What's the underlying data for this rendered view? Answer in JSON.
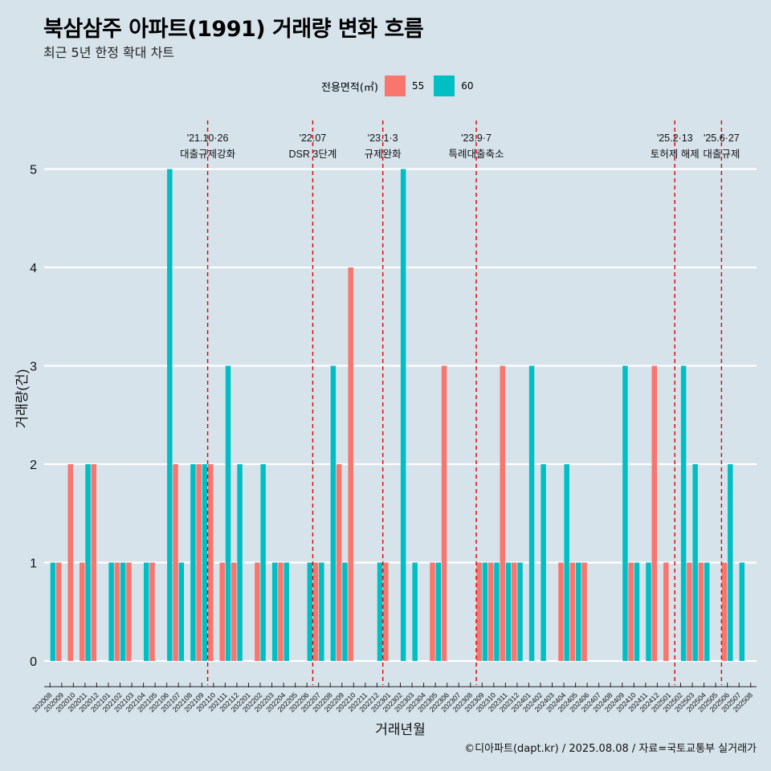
{
  "header": {
    "title": "북삼삼주 아파트(1991) 거래량 변화 흐름",
    "subtitle": "최근 5년 한정 확대 차트"
  },
  "legend": {
    "title": "전용면적(㎡)",
    "items": [
      {
        "label": "55",
        "color": "#f8766d"
      },
      {
        "label": "60",
        "color": "#00bfc4"
      }
    ]
  },
  "caption": "©디아파트(dapt.kr) / 2025.08.08 / 자료=국토교통부 실거래가",
  "chart_data": {
    "type": "bar",
    "title": "북삼삼주 아파트(1991) 거래량 변화 흐름",
    "xlabel": "거래년월",
    "ylabel": "거래량(건)",
    "ylim": [
      -0.2,
      5.6
    ],
    "yticks": [
      0,
      1,
      2,
      3,
      4,
      5
    ],
    "grid": true,
    "legend_position": "top",
    "categories": [
      "202008",
      "202009",
      "202010",
      "202011",
      "202012",
      "202101",
      "202102",
      "202103",
      "202104",
      "202105",
      "202106",
      "202107",
      "202108",
      "202109",
      "202110",
      "202111",
      "202112",
      "202201",
      "202202",
      "202203",
      "202204",
      "202205",
      "202206",
      "202207",
      "202208",
      "202209",
      "202210",
      "202211",
      "202212",
      "202301",
      "202302",
      "202303",
      "202304",
      "202305",
      "202306",
      "202307",
      "202308",
      "202309",
      "202310",
      "202311",
      "202312",
      "202401",
      "202402",
      "202403",
      "202404",
      "202405",
      "202406",
      "202407",
      "202408",
      "202409",
      "202410",
      "202411",
      "202412",
      "202501",
      "202502",
      "202503",
      "202504",
      "202505",
      "202506",
      "202507",
      "202508"
    ],
    "series": [
      {
        "name": "55",
        "color": "#f8766d",
        "values": [
          0,
          1,
          2,
          1,
          2,
          0,
          1,
          1,
          0,
          1,
          0,
          2,
          0,
          2,
          2,
          1,
          1,
          0,
          1,
          0,
          1,
          0,
          0,
          1,
          0,
          2,
          4,
          0,
          0,
          1,
          0,
          0,
          0,
          1,
          3,
          0,
          0,
          1,
          1,
          3,
          1,
          0,
          0,
          0,
          1,
          1,
          1,
          0,
          0,
          0,
          1,
          0,
          3,
          1,
          0,
          1,
          1,
          0,
          1,
          0,
          0
        ]
      },
      {
        "name": "60",
        "color": "#00bfc4",
        "values": [
          1,
          0,
          0,
          2,
          0,
          1,
          1,
          0,
          1,
          0,
          5,
          1,
          2,
          2,
          0,
          3,
          2,
          0,
          2,
          1,
          1,
          0,
          1,
          1,
          3,
          1,
          0,
          0,
          1,
          0,
          5,
          1,
          0,
          1,
          0,
          0,
          0,
          1,
          1,
          1,
          1,
          3,
          2,
          0,
          2,
          1,
          0,
          0,
          0,
          3,
          1,
          1,
          0,
          0,
          3,
          2,
          1,
          0,
          2,
          1,
          0
        ]
      }
    ],
    "annotations": [
      {
        "date": "'21.10·26",
        "label": "대출규제강화",
        "at": "202110"
      },
      {
        "date": "'22.07",
        "label": "DSR 3단계",
        "at": "202207"
      },
      {
        "date": "'23.1·3",
        "label": "규제완화",
        "at": "202301"
      },
      {
        "date": "'23.9·7",
        "label": "특례대출축소",
        "at": "202309"
      },
      {
        "date": "'25.2·13",
        "label": "토허제 해제",
        "at": "202502"
      },
      {
        "date": "'25.6·27",
        "label": "대출규제",
        "at": "202506"
      }
    ]
  }
}
